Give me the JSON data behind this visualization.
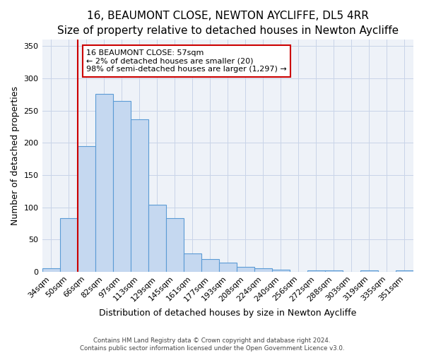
{
  "title": "16, BEAUMONT CLOSE, NEWTON AYCLIFFE, DL5 4RR",
  "subtitle": "Size of property relative to detached houses in Newton Aycliffe",
  "xlabel": "Distribution of detached houses by size in Newton Aycliffe",
  "ylabel": "Number of detached properties",
  "bin_labels": [
    "34sqm",
    "50sqm",
    "66sqm",
    "82sqm",
    "97sqm",
    "113sqm",
    "129sqm",
    "145sqm",
    "161sqm",
    "177sqm",
    "193sqm",
    "208sqm",
    "224sqm",
    "240sqm",
    "256sqm",
    "272sqm",
    "288sqm",
    "303sqm",
    "319sqm",
    "335sqm",
    "351sqm"
  ],
  "bar_heights": [
    5,
    83,
    195,
    276,
    265,
    237,
    104,
    83,
    28,
    19,
    14,
    8,
    5,
    3,
    0,
    2,
    2,
    0,
    2,
    0,
    2
  ],
  "bar_color": "#c5d8f0",
  "bar_edge_color": "#5b9bd5",
  "vline_x": 1.5,
  "vline_color": "#cc0000",
  "annotation_text": "16 BEAUMONT CLOSE: 57sqm\n← 2% of detached houses are smaller (20)\n98% of semi-detached houses are larger (1,297) →",
  "annotation_box_color": "#cc0000",
  "ylim": [
    0,
    360
  ],
  "yticks": [
    0,
    50,
    100,
    150,
    200,
    250,
    300,
    350
  ],
  "footer1": "Contains HM Land Registry data © Crown copyright and database right 2024.",
  "footer2": "Contains public sector information licensed under the Open Government Licence v3.0.",
  "title_fontsize": 11,
  "axis_label_fontsize": 9,
  "tick_fontsize": 8,
  "annot_fontsize": 8,
  "bg_color": "#eef2f8"
}
